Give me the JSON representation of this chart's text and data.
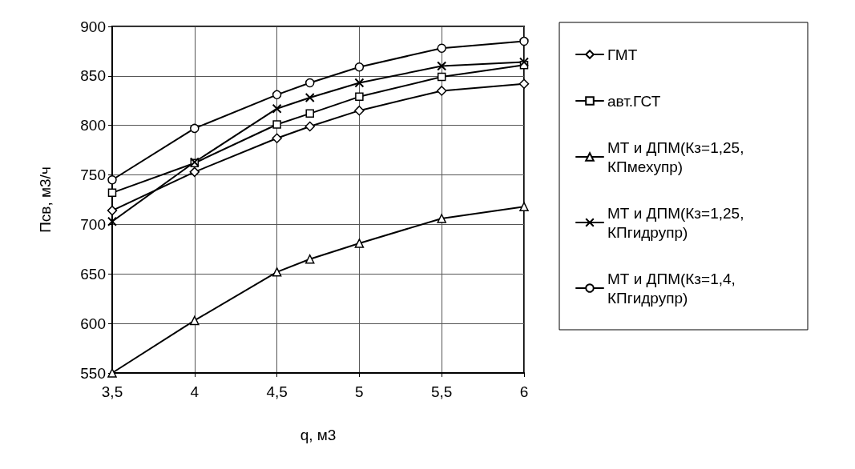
{
  "chart_data": {
    "type": "line",
    "xlabel": "q, м3",
    "ylabel": "Псв, м3/ч",
    "x": [
      3.5,
      4,
      4.5,
      4.7,
      5,
      5.5,
      6
    ],
    "series": [
      {
        "name": "ГМТ",
        "color": "#000000",
        "marker": "diamond",
        "values": [
          714,
          753,
          787,
          799,
          815,
          835,
          842
        ]
      },
      {
        "name": "авт.ГСТ",
        "color": "#000000",
        "marker": "square",
        "values": [
          732,
          762,
          801,
          812,
          829,
          849,
          861
        ]
      },
      {
        "name": "МТ и ДПМ(Кз=1,25, КПмехупр)",
        "color": "#000000",
        "marker": "triangle",
        "values": [
          550,
          603,
          652,
          665,
          681,
          706,
          718
        ]
      },
      {
        "name": "МТ и ДПМ(Кз=1,25, КПгидрупр)",
        "color": "#000000",
        "marker": "cross",
        "values": [
          703,
          763,
          817,
          828,
          843,
          860,
          864
        ]
      },
      {
        "name": "МТ и ДПМ(Кз=1,4, КПгидрупр)",
        "color": "#000000",
        "marker": "circle",
        "values": [
          745,
          797,
          831,
          843,
          859,
          878,
          885
        ]
      }
    ],
    "xlim": [
      3.5,
      6
    ],
    "xticks": [
      {
        "value": 3.5,
        "label": "3,5"
      },
      4,
      {
        "value": 4.5,
        "label": "4,5"
      },
      5,
      {
        "value": 5.5,
        "label": "5,5"
      },
      6
    ],
    "ylim": [
      550,
      900
    ],
    "yticks": [
      550,
      600,
      650,
      700,
      750,
      800,
      850,
      900
    ],
    "grid": true,
    "legend": "right",
    "line_style": "solid"
  }
}
